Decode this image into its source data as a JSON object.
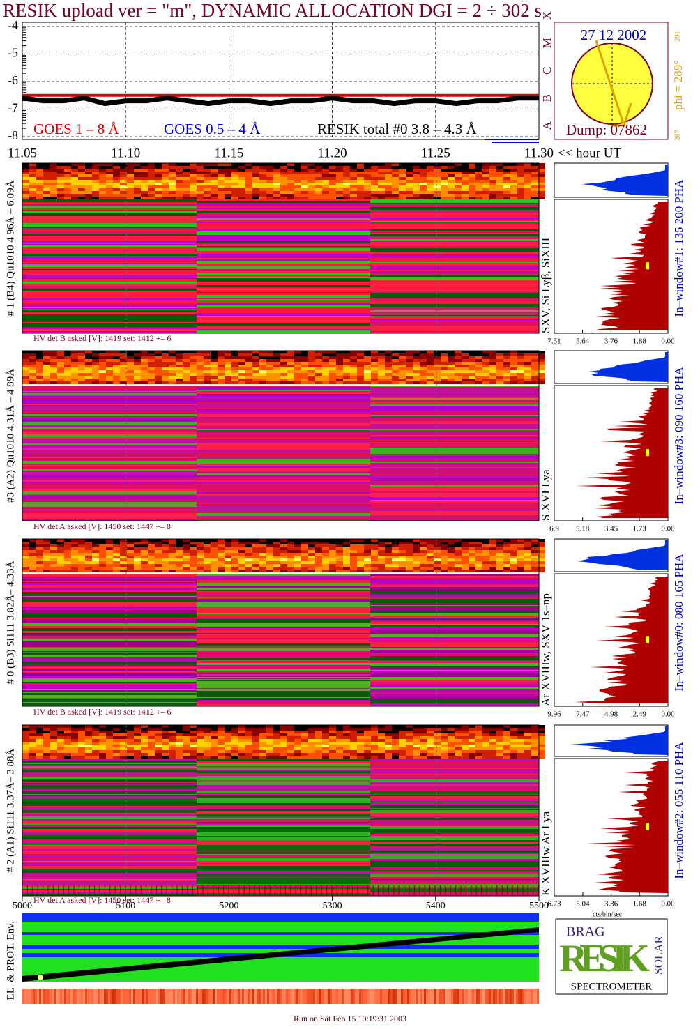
{
  "title": "RESIK upload ver = \"m\", DYNAMIC ALLOCATION  DGI =   2 ÷ 302 s",
  "chart_data": [
    {
      "type": "line",
      "categories": [
        "11.05",
        "11.06",
        "11.07",
        "11.08",
        "11.09",
        "11.10",
        "11.11",
        "11.12",
        "11.13",
        "11.14",
        "11.15",
        "11.16",
        "11.17",
        "11.18",
        "11.19",
        "11.20",
        "11.21",
        "11.22",
        "11.23",
        "11.24",
        "11.25",
        "11.26",
        "11.27",
        "11.28",
        "11.29",
        "11.30"
      ],
      "xticks": [
        "11.05",
        "11.10",
        "11.15",
        "11.20",
        "11.25",
        "11.30"
      ],
      "x_unit": "<< hour UT",
      "ylim": [
        -8,
        -4
      ],
      "yticks": [
        -8,
        -7,
        -6,
        -5,
        -4
      ],
      "class_labels": [
        "A",
        "B",
        "C",
        "M",
        "X"
      ],
      "grid": true,
      "series": [
        {
          "name": "GOES 1 – 8 Å",
          "color": "#e00000",
          "values": [
            -6.5,
            -6.5,
            -6.5,
            -6.5,
            -6.5,
            -6.5,
            -6.5,
            -6.5,
            -6.5,
            -6.5,
            -6.5,
            -6.5,
            -6.5,
            -6.5,
            -6.5,
            -6.5,
            -6.5,
            -6.5,
            -6.5,
            -6.5,
            -6.5,
            -6.5,
            -6.5,
            -6.5,
            -6.5,
            -6.5
          ]
        },
        {
          "name": "GOES 0.5 – 4 Å",
          "color": "#0000e0",
          "values": [
            null,
            null,
            null,
            null,
            null,
            null,
            null,
            null,
            null,
            null,
            null,
            null,
            null,
            null,
            null,
            null,
            null,
            null,
            null,
            null,
            null,
            null,
            null,
            null,
            null,
            null
          ]
        },
        {
          "name": "RESIK total #0  3.8 – 4.3 Å",
          "color": "#000000",
          "values": [
            -6.6,
            -6.7,
            -6.7,
            -6.6,
            -6.8,
            -6.7,
            -6.7,
            -6.6,
            -6.7,
            -6.8,
            -6.7,
            -6.7,
            -6.8,
            -6.7,
            -6.7,
            -6.6,
            -6.7,
            -6.7,
            -6.8,
            -6.7,
            -6.7,
            -6.8,
            -6.7,
            -6.7,
            -6.6,
            -6.6
          ]
        }
      ],
      "inset": {
        "date": "27 12 2002",
        "dump": "Dump: 07862",
        "phi": "phi = 289°",
        "phi_hi": "291",
        "phi_lo": "287"
      }
    },
    {
      "type": "spectrogram",
      "panels": [
        {
          "label": "# 1 (B4) Qu1010 4.96Å – 6.09Å",
          "hv": "HV det B asked [V]:  1419 set:  1412 +–    6",
          "lines": "SXV, Si Lyβ, SiXIII",
          "window": "In–window#1:  135 200 PHA",
          "hist_xlim": [
            7.51,
            0
          ],
          "hist_xticks": [
            7.51,
            5.64,
            3.76,
            1.88,
            {
              "value": 0,
              "label": "0.00"
            }
          ],
          "palette": [
            "#ff1a3a",
            "#e0106a",
            "#c000c8",
            "#30c020",
            "#ff2040",
            "#0a5a0a"
          ]
        },
        {
          "label": "#3 (A2) Qu1010  4.31Å – 4.89Å",
          "hv": "HV det A asked [V]:  1450 set:  1447 +–    8",
          "lines": "S XVI Lya",
          "window": "In–window#3:  090 160 PHA",
          "hist_xlim": [
            6.9,
            0
          ],
          "hist_xticks": [
            6.9,
            5.18,
            3.45,
            1.73,
            {
              "value": 0,
              "label": "0.00"
            }
          ],
          "palette": [
            "#e01060",
            "#c010a0",
            "#ff2050",
            "#b000d0",
            "#40b020",
            "#d01070"
          ]
        },
        {
          "label": "# 0 (B3) Si111  3.82Å– 4.33Å",
          "hv": "HV det B asked [V]:  1419 set:  1412 +–    6",
          "lines": "Ar XVIIIw, SXV 1s–np",
          "window": "In–window#0:  080 165 PHA",
          "hist_xlim": [
            9.96,
            0
          ],
          "hist_xticks": [
            9.96,
            7.47,
            4.98,
            2.49,
            {
              "value": 0,
              "label": "0.00"
            }
          ],
          "palette": [
            "#c000c0",
            "#e01070",
            "#ff2040",
            "#50b020",
            "#a00090",
            "#0a5a0a"
          ]
        },
        {
          "label": "# 2 (A1) Si111  3.37Å– 3.88Å",
          "hv": "HV det A asked [V]:  1450 set:  1447 +–    8",
          "lines": "K XVIIIw  Ar Lya",
          "window": "In–window#2:  055 110 PHA",
          "hist_xlim": [
            6.73,
            0
          ],
          "hist_xticks": [
            6.73,
            5.04,
            3.36,
            1.68,
            {
              "value": 0,
              "label": "0.00"
            }
          ],
          "palette": [
            "#0a5a0a",
            "#30b020",
            "#e01060",
            "#ff2040",
            "#c010a0",
            "#0a6a0a"
          ]
        }
      ],
      "hist_unit": "cts/bin/sec"
    },
    {
      "type": "env",
      "label": "EL. & PROT. Env.",
      "xlim": [
        5000,
        5500
      ],
      "xticks": [
        5000,
        5100,
        5200,
        5300,
        5400,
        5500
      ]
    }
  ],
  "logo": {
    "top": "BRAG",
    "main": "RESIK",
    "side": "SOLAR",
    "bottom": "SPECTROMETER"
  },
  "footer": "Run on Sat Feb 15 10:19:31 2003"
}
